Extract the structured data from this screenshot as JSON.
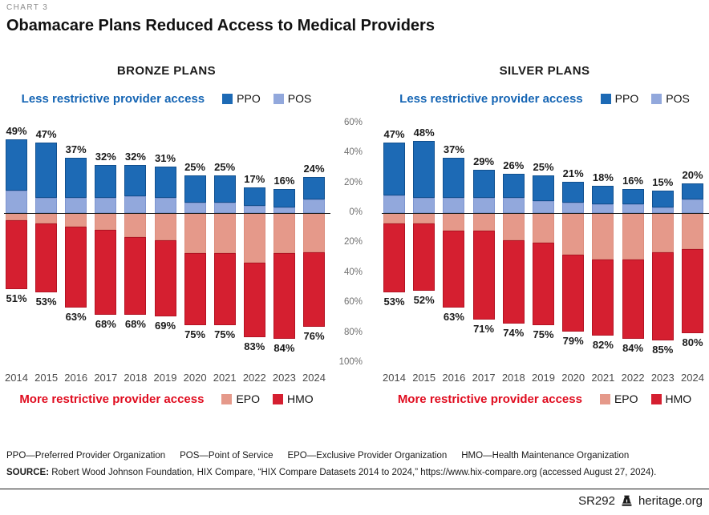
{
  "header": {
    "kicker": "CHART 3",
    "title": "Obamacare Plans Reduced Access to Medical Providers"
  },
  "colors": {
    "ppo": "#1d6ab5",
    "pos": "#92a8dc",
    "epo": "#e5998a",
    "hmo": "#d51f30",
    "legend_blue_text": "#1565b4",
    "legend_red_text": "#e00c1f"
  },
  "legend_top": {
    "caption": "Less restrictive provider access",
    "items": [
      {
        "label": "PPO"
      },
      {
        "label": "POS"
      }
    ]
  },
  "legend_bottom": {
    "caption": "More restrictive provider access",
    "items": [
      {
        "label": "EPO"
      },
      {
        "label": "HMO"
      }
    ]
  },
  "axis": {
    "ticks": [
      {
        "label": "60%",
        "value": 60
      },
      {
        "label": "40%",
        "value": 40
      },
      {
        "label": "20%",
        "value": 20
      },
      {
        "label": "0%",
        "value": 0
      },
      {
        "label": "20%",
        "value": -20
      },
      {
        "label": "40%",
        "value": -40
      },
      {
        "label": "60%",
        "value": -60
      },
      {
        "label": "80%",
        "value": -80
      },
      {
        "label": "100%",
        "value": -100
      }
    ]
  },
  "chart_data": [
    {
      "type": "bar",
      "subtype": "diverging-stacked",
      "title": "BRONZE PLANS",
      "years": [
        "2014",
        "2015",
        "2016",
        "2017",
        "2018",
        "2019",
        "2020",
        "2021",
        "2022",
        "2023",
        "2024"
      ],
      "series": [
        {
          "name": "PPO",
          "values": [
            34,
            37,
            27,
            22,
            21,
            21,
            18,
            18,
            12,
            12,
            15
          ]
        },
        {
          "name": "POS",
          "values": [
            15,
            10,
            10,
            10,
            11,
            10,
            7,
            7,
            5,
            4,
            9
          ]
        },
        {
          "name": "EPO",
          "values": [
            5,
            7,
            9,
            11,
            16,
            18,
            27,
            27,
            33,
            27,
            26
          ]
        },
        {
          "name": "HMO",
          "values": [
            46,
            46,
            54,
            57,
            52,
            51,
            48,
            48,
            50,
            57,
            50
          ]
        }
      ],
      "labels_above": [
        "49%",
        "47%",
        "37%",
        "32%",
        "32%",
        "31%",
        "25%",
        "25%",
        "17%",
        "16%",
        "24%"
      ],
      "labels_below": [
        "51%",
        "53%",
        "63%",
        "68%",
        "68%",
        "69%",
        "75%",
        "75%",
        "83%",
        "84%",
        "76%"
      ],
      "ylim": [
        -100,
        60
      ],
      "grid": false
    },
    {
      "type": "bar",
      "subtype": "diverging-stacked",
      "title": "SILVER PLANS",
      "years": [
        "2014",
        "2015",
        "2016",
        "2017",
        "2018",
        "2019",
        "2020",
        "2021",
        "2022",
        "2023",
        "2024"
      ],
      "series": [
        {
          "name": "PPO",
          "values": [
            35,
            38,
            27,
            19,
            16,
            17,
            14,
            12,
            10,
            11,
            11
          ]
        },
        {
          "name": "POS",
          "values": [
            12,
            10,
            10,
            10,
            10,
            8,
            7,
            6,
            6,
            4,
            9
          ]
        },
        {
          "name": "EPO",
          "values": [
            7,
            7,
            12,
            12,
            18,
            20,
            28,
            31,
            31,
            26,
            24
          ]
        },
        {
          "name": "HMO",
          "values": [
            46,
            45,
            51,
            59,
            56,
            55,
            51,
            51,
            53,
            59,
            56
          ]
        }
      ],
      "labels_above": [
        "47%",
        "48%",
        "37%",
        "29%",
        "26%",
        "25%",
        "21%",
        "18%",
        "16%",
        "15%",
        "20%"
      ],
      "labels_below": [
        "53%",
        "52%",
        "63%",
        "71%",
        "74%",
        "75%",
        "79%",
        "82%",
        "84%",
        "85%",
        "80%"
      ],
      "ylim": [
        -100,
        60
      ],
      "grid": false
    }
  ],
  "footer": {
    "definitions": [
      "PPO—Preferred Provider Organization",
      "POS—Point of Service",
      "EPO—Exclusive Provider Organization",
      "HMO—Health Maintenance Organization"
    ],
    "source_label": "SOURCE:",
    "source_text": " Robert Wood Johnson Foundation, HIX Compare, “HIX Compare Datasets 2014 to 2024,” https://www.hix-compare.org (accessed August 27, 2024).",
    "doc_id": "SR292",
    "site": "heritage.org"
  }
}
